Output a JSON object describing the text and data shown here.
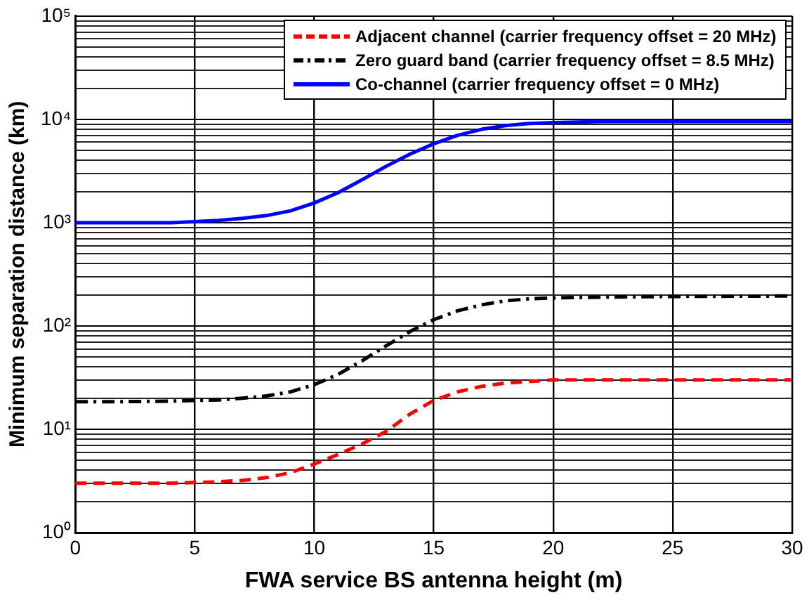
{
  "chart_data": {
    "type": "line",
    "xlabel": "FWA service BS antenna height (m)",
    "ylabel": "Minimum separation distance (km)",
    "log": "y",
    "grid": true,
    "legend": "top right",
    "marker": "none",
    "xlim": [
      0,
      30
    ],
    "xticks": [
      0,
      5,
      10,
      15,
      20,
      25,
      30
    ],
    "ylim": [
      1,
      100000
    ],
    "yticks": [
      {
        "value": 1,
        "label": "10⁰"
      },
      {
        "value": 10,
        "label": "10¹"
      },
      {
        "value": 100,
        "label": "10²"
      },
      {
        "value": 1000,
        "label": "10³"
      },
      {
        "value": 10000,
        "label": "10⁴"
      },
      {
        "value": 100000,
        "label": "10⁵"
      }
    ],
    "x": [
      0,
      2,
      4,
      5,
      6,
      7,
      8,
      9,
      10,
      11,
      12,
      13,
      14,
      15,
      16,
      17,
      18,
      19,
      20,
      22,
      25,
      30
    ],
    "series": [
      {
        "name": "Adjacent channel (carrier frequency offset = 20 MHz)",
        "color": "#ff0000",
        "line_style": "dashed",
        "values": [
          3,
          3,
          3,
          3.05,
          3.1,
          3.2,
          3.4,
          3.8,
          4.6,
          5.7,
          7.2,
          9.5,
          14,
          19,
          23,
          26,
          28,
          29,
          30,
          30,
          30,
          30
        ]
      },
      {
        "name": "Zero guard band (carrier frequency offset = 8.5 MHz)",
        "color": "#000000",
        "line_style": "dashdot",
        "values": [
          18.5,
          18.5,
          18.7,
          19,
          19.2,
          20,
          21,
          23,
          27,
          34,
          46,
          64,
          88,
          115,
          140,
          160,
          175,
          183,
          187,
          190,
          193,
          195
        ]
      },
      {
        "name": "Co-channel (carrier frequency offset = 0 MHz)",
        "color": "#0000ff",
        "line_style": "solid",
        "values": [
          1000,
          1000,
          1000,
          1020,
          1050,
          1100,
          1170,
          1300,
          1550,
          1950,
          2600,
          3500,
          4600,
          5800,
          7000,
          8000,
          8700,
          9100,
          9300,
          9500,
          9500,
          9500
        ]
      }
    ]
  }
}
